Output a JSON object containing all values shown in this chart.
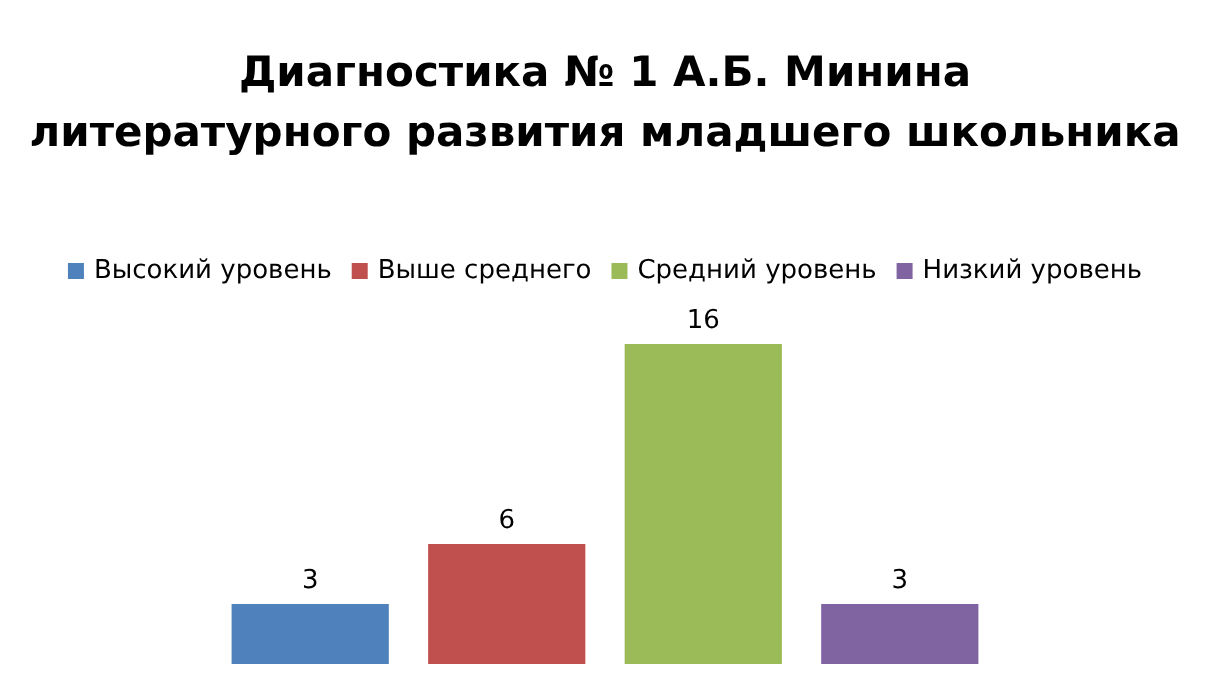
{
  "chart_data": {
    "type": "bar",
    "title": "Диагностика № 1 А.Б. Минина\nлитературного развития младшего школьника",
    "categories": [
      null
    ],
    "series": [
      {
        "name": "Высокий уровень",
        "color": "#4f81bd",
        "values": [
          3
        ]
      },
      {
        "name": "Выше среднего",
        "color": "#c0504d",
        "values": [
          6
        ]
      },
      {
        "name": "Средний уровень",
        "color": "#9bbb59",
        "values": [
          16
        ]
      },
      {
        "name": "Низкий уровень",
        "color": "#8064a2",
        "values": [
          3
        ]
      }
    ],
    "data_labels": true,
    "legend": "top"
  }
}
